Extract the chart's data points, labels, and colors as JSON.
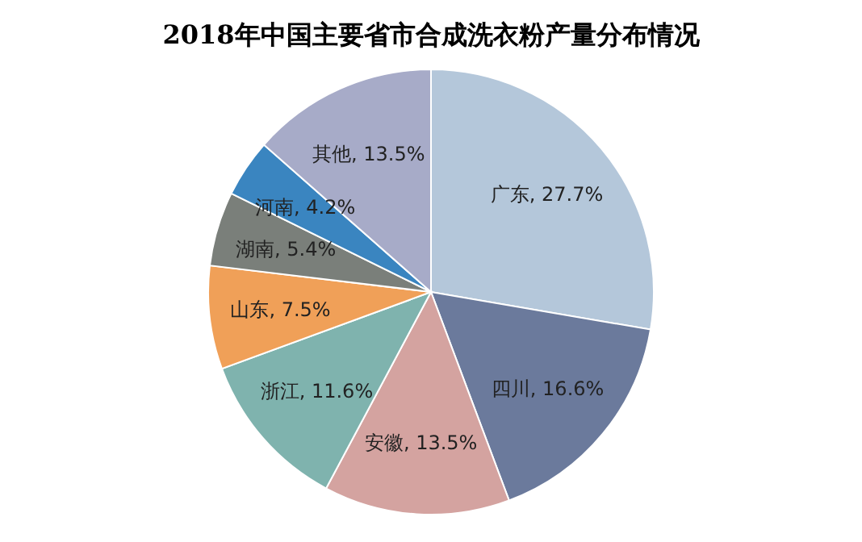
{
  "chart_data": {
    "type": "pie",
    "title": "2018年中国主要省市合成洗衣粉产量分布情况",
    "categories": [
      "广东",
      "四川",
      "安徽",
      "浙江",
      "山东",
      "湖南",
      "河南",
      "其他"
    ],
    "values": [
      27.7,
      16.6,
      13.5,
      11.6,
      7.5,
      5.4,
      4.2,
      13.5
    ],
    "colors": [
      "#b4c7da",
      "#6b7a9c",
      "#d4a3a0",
      "#7fb3ae",
      "#f0a058",
      "#7a7f7a",
      "#3a85c0",
      "#a7abc8"
    ],
    "value_labels": [
      "27.7%",
      "16.6%",
      "13.5%",
      "11.6%",
      "7.5%",
      "5.4%",
      "4.2%",
      "13.5%"
    ],
    "legend": false
  }
}
